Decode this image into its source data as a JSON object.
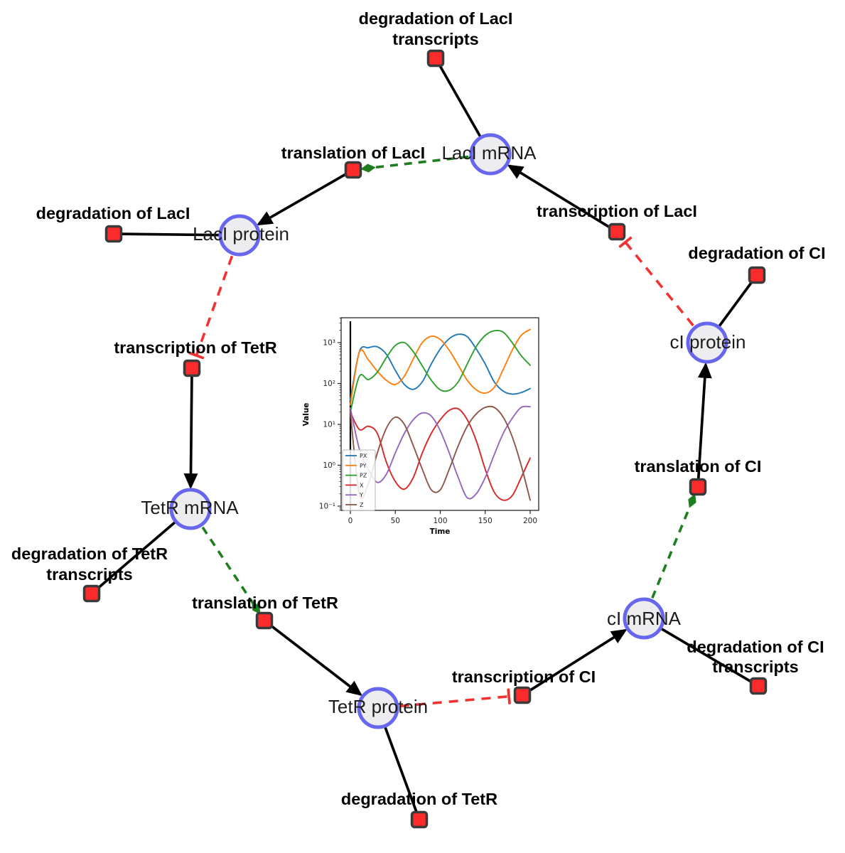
{
  "diagram": {
    "species": [
      {
        "id": "laci-mrna",
        "label": "LacI mRNA"
      },
      {
        "id": "laci-protein",
        "label": "LacI protein"
      },
      {
        "id": "tetr-mrna",
        "label": "TetR mRNA"
      },
      {
        "id": "tetr-protein",
        "label": "TetR protein"
      },
      {
        "id": "ci-mrna",
        "label": "cI mRNA"
      },
      {
        "id": "ci-protein",
        "label": "cI protein"
      }
    ],
    "reactions": [
      {
        "id": "degradation-of-laci-transcripts",
        "label": "degradation of LacI",
        "label2": "transcripts"
      },
      {
        "id": "translation-of-laci",
        "label": "translation of LacI"
      },
      {
        "id": "degradation-of-laci",
        "label": "degradation of LacI"
      },
      {
        "id": "transcription-of-tetr",
        "label": "transcription of TetR"
      },
      {
        "id": "degradation-of-tetr-transcripts",
        "label": "degradation of TetR",
        "label2": "transcripts"
      },
      {
        "id": "translation-of-tetr",
        "label": "translation of TetR"
      },
      {
        "id": "degradation-of-tetr",
        "label": "degradation of TetR"
      },
      {
        "id": "transcription-of-ci",
        "label": "transcription of CI"
      },
      {
        "id": "degradation-of-ci-transcripts",
        "label": "degradation of CI",
        "label2": "transcripts"
      },
      {
        "id": "translation-of-ci",
        "label": "translation of CI"
      },
      {
        "id": "degradation-of-ci",
        "label": "degradation of CI"
      },
      {
        "id": "transcription-of-laci",
        "label": "transcription of LacI"
      }
    ],
    "edges": [
      {
        "from": "laci-mrna",
        "to": "degradation-of-laci-transcripts",
        "type": "consumption"
      },
      {
        "from": "transcription-of-laci",
        "to": "laci-mrna",
        "type": "production"
      },
      {
        "from": "laci-mrna",
        "to": "translation-of-laci",
        "type": "modifier"
      },
      {
        "from": "translation-of-laci",
        "to": "laci-protein",
        "type": "production"
      },
      {
        "from": "laci-protein",
        "to": "degradation-of-laci",
        "type": "consumption"
      },
      {
        "from": "laci-protein",
        "to": "transcription-of-tetr",
        "type": "inhibition"
      },
      {
        "from": "transcription-of-tetr",
        "to": "tetr-mrna",
        "type": "production"
      },
      {
        "from": "tetr-mrna",
        "to": "degradation-of-tetr-transcripts",
        "type": "consumption"
      },
      {
        "from": "tetr-mrna",
        "to": "translation-of-tetr",
        "type": "modifier"
      },
      {
        "from": "translation-of-tetr",
        "to": "tetr-protein",
        "type": "production"
      },
      {
        "from": "tetr-protein",
        "to": "degradation-of-tetr",
        "type": "consumption"
      },
      {
        "from": "tetr-protein",
        "to": "transcription-of-ci",
        "type": "inhibition"
      },
      {
        "from": "transcription-of-ci",
        "to": "ci-mrna",
        "type": "production"
      },
      {
        "from": "ci-mrna",
        "to": "degradation-of-ci-transcripts",
        "type": "consumption"
      },
      {
        "from": "ci-mrna",
        "to": "translation-of-ci",
        "type": "modifier"
      },
      {
        "from": "translation-of-ci",
        "to": "ci-protein",
        "type": "production"
      },
      {
        "from": "ci-protein",
        "to": "degradation-of-ci",
        "type": "consumption"
      },
      {
        "from": "ci-protein",
        "to": "transcription-of-laci",
        "type": "inhibition"
      }
    ],
    "colors": {
      "species_fill": "#ededf0",
      "species_stroke": "#6666ee",
      "reaction_fill": "#fb2b2b",
      "reaction_stroke": "#3a3a3a",
      "production_edge": "#000000",
      "modifier_edge": "#1e7d1e",
      "inhibition_edge": "#f43131"
    }
  },
  "chart_data": {
    "type": "line",
    "title": "",
    "xlabel": "Time",
    "ylabel": "Value",
    "yscale": "log",
    "grid": false,
    "legend_position": "lower left",
    "xlim": [
      -10,
      209
    ],
    "ylim": [
      0.08,
      4000
    ],
    "x_ticks": [
      0,
      50,
      100,
      150,
      200
    ],
    "y_tick_values": [
      1000,
      100,
      10,
      1,
      0.1
    ],
    "y_tick_labels": [
      "10³",
      "10²",
      "10¹",
      "10⁰",
      "10⁻¹"
    ],
    "x": [
      0,
      10,
      20,
      30,
      40,
      50,
      60,
      70,
      80,
      90,
      100,
      110,
      120,
      130,
      140,
      150,
      160,
      170,
      180,
      190,
      200
    ],
    "series": [
      {
        "name": "PX",
        "color": "#1f77b4",
        "values": [
          40,
          600,
          750,
          790,
          520,
          210,
          95,
          72,
          110,
          300,
          700,
          1250,
          1600,
          1400,
          700,
          300,
          110,
          65,
          55,
          60,
          75
        ]
      },
      {
        "name": "PY",
        "color": "#ff7f0e",
        "values": [
          30,
          580,
          380,
          200,
          120,
          95,
          150,
          400,
          1000,
          1430,
          1200,
          650,
          280,
          120,
          70,
          58,
          80,
          220,
          650,
          1500,
          2100
        ]
      },
      {
        "name": "PZ",
        "color": "#2ca02c",
        "values": [
          20,
          150,
          125,
          190,
          430,
          850,
          1000,
          600,
          270,
          120,
          70,
          68,
          110,
          300,
          800,
          1500,
          1950,
          1800,
          1000,
          480,
          280
        ]
      },
      {
        "name": "X",
        "color": "#d62728",
        "values": [
          20,
          7.5,
          9,
          6,
          1.2,
          0.4,
          0.26,
          0.5,
          2,
          6,
          13,
          22,
          24,
          13,
          4,
          0.8,
          0.22,
          0.14,
          0.18,
          0.5,
          1.5
        ]
      },
      {
        "name": "Y",
        "color": "#9467bd",
        "values": [
          25,
          2.5,
          0.8,
          0.38,
          0.6,
          2,
          6,
          13,
          19,
          16,
          7,
          2,
          0.5,
          0.16,
          0.2,
          0.5,
          1.8,
          6,
          14,
          26,
          27
        ]
      },
      {
        "name": "Z",
        "color": "#8c564b",
        "values": [
          20,
          0.2,
          0.35,
          2,
          8,
          15,
          10,
          3,
          0.8,
          0.25,
          0.25,
          0.8,
          3,
          9,
          18,
          26,
          26,
          15,
          5,
          1,
          0.14
        ]
      }
    ],
    "annotations": [
      {
        "type": "vline",
        "x": 0,
        "color": "#000000"
      }
    ]
  }
}
